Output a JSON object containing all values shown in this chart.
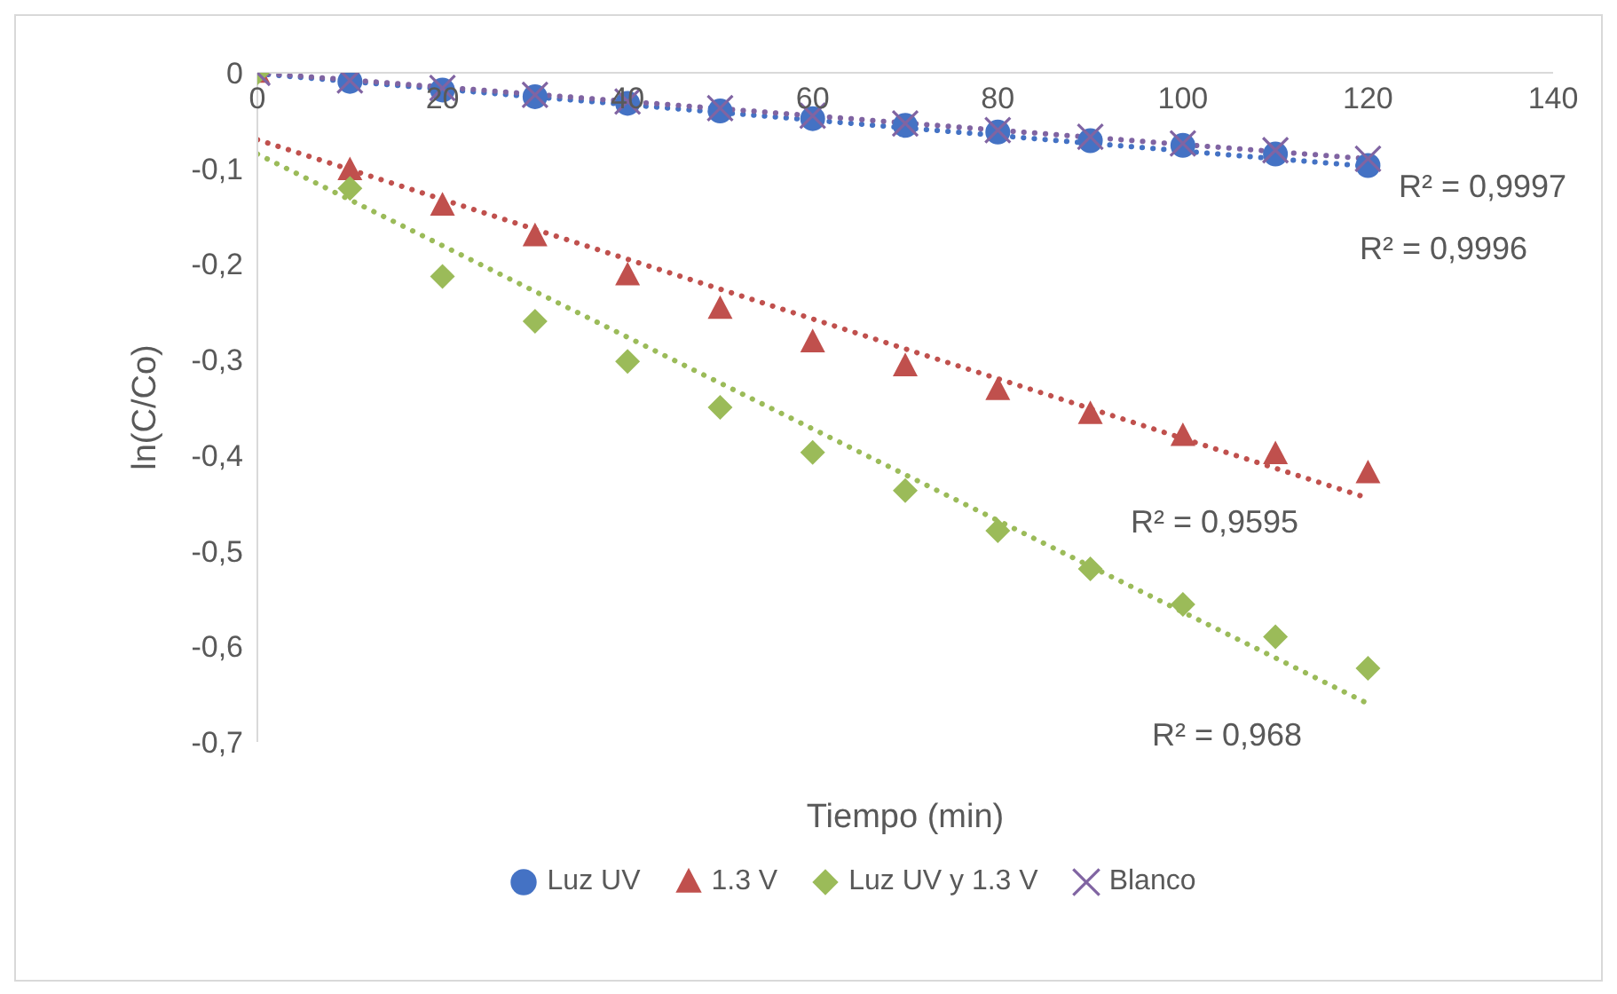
{
  "chart_data": {
    "type": "scatter",
    "xlabel": "Tiempo (min)",
    "ylabel": "ln(C/Co)",
    "xlim": [
      0,
      140
    ],
    "xticks": [
      0,
      20,
      40,
      60,
      80,
      100,
      120,
      140
    ],
    "ylim": [
      -0.7,
      0
    ],
    "yticks": [
      {
        "value": -0.7,
        "label": "-0,7"
      },
      {
        "value": -0.6,
        "label": "-0,6"
      },
      {
        "value": -0.5,
        "label": "-0,5"
      },
      {
        "value": -0.4,
        "label": "-0,4"
      },
      {
        "value": -0.3,
        "label": "-0,3"
      },
      {
        "value": -0.2,
        "label": "-0,2"
      },
      {
        "value": -0.1,
        "label": "-0,1"
      },
      {
        "value": 0,
        "label": "0"
      }
    ],
    "legend": "bottom",
    "series": [
      {
        "name": "Luz UV",
        "marker": "circle",
        "color": "#4472c4",
        "x": [
          10,
          20,
          30,
          40,
          50,
          60,
          70,
          80,
          90,
          100,
          110,
          120
        ],
        "values": [
          -0.009,
          -0.018,
          -0.025,
          -0.032,
          -0.04,
          -0.048,
          -0.055,
          -0.062,
          -0.071,
          -0.076,
          -0.085,
          -0.097
        ]
      },
      {
        "name": "1.3 V",
        "marker": "triangle",
        "color": "#c0504d",
        "x": [
          0,
          10,
          20,
          30,
          40,
          50,
          60,
          70,
          80,
          90,
          100,
          110,
          120
        ],
        "values": [
          0,
          -0.102,
          -0.139,
          -0.171,
          -0.212,
          -0.247,
          -0.282,
          -0.307,
          -0.332,
          -0.357,
          -0.38,
          -0.399,
          -0.419
        ]
      },
      {
        "name": "Luz UV y 1.3 V",
        "marker": "diamond",
        "color": "#9bbb59",
        "x": [
          0,
          10,
          20,
          30,
          40,
          50,
          60,
          70,
          80,
          90,
          100,
          110,
          120
        ],
        "values": [
          0,
          -0.121,
          -0.213,
          -0.26,
          -0.302,
          -0.35,
          -0.397,
          -0.437,
          -0.479,
          -0.519,
          -0.556,
          -0.59,
          -0.623
        ]
      },
      {
        "name": "Blanco",
        "marker": "cross",
        "color": "#8064a2",
        "x": [
          0,
          10,
          20,
          30,
          40,
          50,
          60,
          70,
          80,
          90,
          100,
          110,
          120
        ],
        "values": [
          0,
          -0.008,
          -0.016,
          -0.023,
          -0.03,
          -0.037,
          -0.045,
          -0.053,
          -0.06,
          -0.067,
          -0.074,
          -0.081,
          -0.09
        ]
      },
      {
        "type": "line",
        "line_style": "dotted",
        "color": "#4472c4",
        "x": [
          0,
          120
        ],
        "values": [
          -0.001,
          -0.098
        ]
      },
      {
        "type": "line",
        "line_style": "dotted",
        "color": "#c0504d",
        "x": [
          0,
          120
        ],
        "values": [
          -0.07,
          -0.445
        ]
      },
      {
        "type": "line",
        "line_style": "dotted",
        "color": "#9bbb59",
        "x": [
          0,
          120
        ],
        "values": [
          -0.085,
          -0.66
        ]
      },
      {
        "type": "line",
        "line_style": "dotted",
        "color": "#8064a2",
        "x": [
          0,
          120
        ],
        "values": [
          0,
          -0.09
        ]
      }
    ],
    "annotations": [
      "R² = 0,9997",
      "R² = 0,9996",
      "R² = 0,9595",
      "R² = 0,968"
    ]
  }
}
